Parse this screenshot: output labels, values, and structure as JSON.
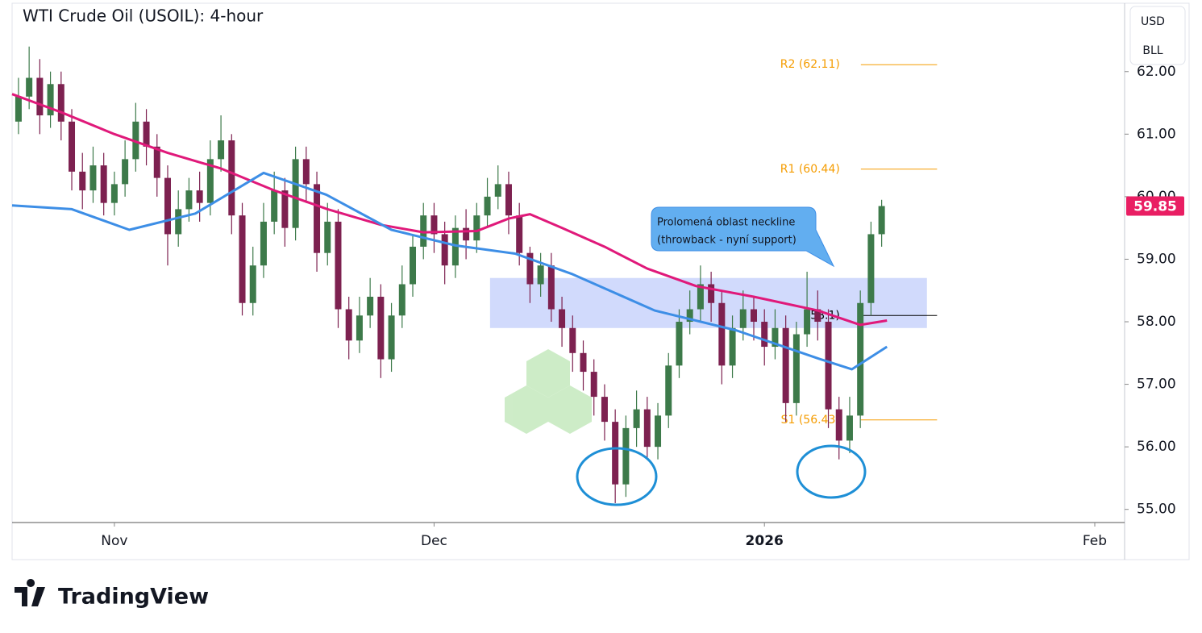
{
  "chart_data": {
    "type": "candlestick",
    "title": "WTI Crude Oil (USOIL): 4-hour",
    "currency": "USD",
    "unit": "BLL",
    "x": [
      -9,
      -8,
      -7,
      -6,
      -5,
      -4,
      -3,
      -2,
      -1,
      0,
      1,
      2,
      3,
      4,
      5,
      6,
      7,
      8,
      9,
      10,
      11,
      12,
      13,
      14,
      15,
      16,
      17,
      18,
      19,
      20,
      21,
      22,
      23,
      24,
      25,
      26,
      27,
      28,
      29,
      30,
      31,
      32,
      33,
      34,
      35,
      36,
      37,
      38,
      39,
      40,
      41,
      42,
      43,
      44,
      45,
      46,
      47,
      48,
      49,
      50,
      51,
      52,
      53,
      54,
      55,
      56,
      57,
      58,
      59,
      60,
      61,
      62,
      63,
      64,
      65,
      66,
      67,
      68,
      69,
      70,
      71,
      72
    ],
    "open": [
      61.2,
      61.6,
      61.9,
      61.3,
      61.8,
      61.2,
      60.4,
      60.1,
      60.5,
      59.9,
      60.2,
      60.6,
      61.2,
      60.8,
      60.3,
      59.4,
      59.8,
      60.1,
      59.9,
      60.6,
      60.9,
      59.7,
      58.3,
      58.9,
      59.6,
      60.1,
      59.5,
      60.6,
      60.2,
      59.1,
      59.6,
      58.2,
      57.7,
      58.1,
      58.4,
      57.4,
      58.1,
      58.6,
      59.2,
      59.7,
      59.4,
      58.9,
      59.5,
      59.3,
      59.7,
      60.0,
      60.2,
      59.7,
      59.1,
      58.6,
      58.9,
      58.2,
      57.9,
      57.5,
      57.2,
      56.8,
      56.4,
      55.4,
      56.3,
      56.6,
      56.0,
      56.5,
      57.3,
      58.0,
      58.2,
      58.6,
      58.3,
      57.3,
      57.9,
      58.2,
      58.0,
      57.6,
      57.9,
      56.7,
      57.8,
      58.2,
      58.0,
      56.6,
      56.1,
      56.5,
      58.3,
      59.4
    ],
    "high": [
      61.9,
      62.4,
      62.2,
      62.0,
      62.0,
      61.4,
      60.7,
      60.8,
      60.7,
      60.4,
      60.9,
      61.5,
      61.4,
      61.0,
      60.5,
      60.1,
      60.3,
      60.4,
      60.9,
      61.3,
      61.0,
      59.9,
      59.2,
      59.9,
      60.4,
      60.3,
      60.8,
      60.8,
      60.4,
      59.9,
      59.8,
      58.4,
      58.4,
      58.7,
      58.6,
      58.3,
      58.9,
      59.4,
      59.9,
      59.9,
      59.6,
      59.7,
      59.8,
      59.9,
      60.3,
      60.5,
      60.4,
      59.9,
      59.2,
      59.1,
      59.1,
      58.4,
      58.1,
      57.7,
      57.4,
      57.0,
      56.6,
      56.5,
      56.9,
      56.8,
      56.7,
      57.5,
      58.2,
      58.5,
      58.9,
      58.8,
      58.5,
      58.1,
      58.5,
      58.4,
      58.2,
      58.2,
      58.1,
      58.0,
      58.8,
      58.5,
      58.2,
      56.8,
      56.8,
      58.5,
      59.6,
      59.95
    ],
    "low": [
      61.0,
      61.4,
      61.0,
      61.1,
      60.9,
      60.1,
      59.8,
      59.9,
      59.7,
      59.7,
      60.0,
      60.4,
      60.5,
      60.0,
      58.9,
      59.2,
      59.6,
      59.6,
      59.7,
      60.4,
      59.4,
      58.1,
      58.1,
      58.7,
      59.4,
      59.2,
      59.3,
      59.9,
      58.8,
      58.9,
      57.9,
      57.4,
      57.5,
      57.9,
      57.1,
      57.2,
      57.9,
      58.4,
      59.0,
      59.1,
      58.6,
      58.7,
      59.0,
      59.1,
      59.5,
      59.8,
      59.4,
      58.9,
      58.3,
      58.4,
      58.0,
      57.6,
      57.2,
      56.9,
      56.5,
      56.1,
      55.1,
      55.2,
      56.0,
      55.8,
      55.8,
      56.3,
      57.1,
      57.8,
      58.0,
      58.0,
      57.0,
      57.1,
      57.7,
      57.7,
      57.3,
      57.4,
      56.4,
      56.5,
      57.6,
      57.7,
      56.3,
      55.8,
      55.9,
      56.3,
      58.1,
      59.2
    ],
    "close": [
      61.6,
      61.9,
      61.3,
      61.8,
      61.2,
      60.4,
      60.1,
      60.5,
      59.9,
      60.2,
      60.6,
      61.2,
      60.8,
      60.3,
      59.4,
      59.8,
      60.1,
      59.9,
      60.6,
      60.9,
      59.7,
      58.3,
      58.9,
      59.6,
      60.1,
      59.5,
      60.6,
      60.2,
      59.1,
      59.6,
      58.2,
      57.7,
      58.1,
      58.4,
      57.4,
      58.1,
      58.6,
      59.2,
      59.7,
      59.4,
      58.9,
      59.5,
      59.3,
      59.7,
      60.0,
      60.2,
      59.7,
      59.1,
      58.6,
      58.9,
      58.2,
      57.9,
      57.5,
      57.2,
      56.8,
      56.4,
      55.4,
      56.3,
      56.6,
      56.0,
      56.5,
      57.3,
      58.0,
      58.2,
      58.6,
      58.3,
      57.3,
      57.9,
      58.2,
      58.0,
      57.6,
      57.9,
      56.7,
      57.8,
      58.2,
      58.0,
      56.6,
      56.1,
      56.5,
      58.3,
      59.4,
      59.85
    ],
    "up_color": "#3d7a4a",
    "down_color": "#7d2150",
    "series": [
      {
        "color": "#e0197a",
        "x": [
          -9.6,
          -5,
          0,
          5,
          10,
          15,
          20,
          25,
          29,
          34,
          37,
          39,
          42,
          46,
          50,
          54.6,
          60,
          66,
          70,
          72.5
        ],
        "values": [
          61.64,
          61.35,
          61.0,
          60.7,
          60.45,
          60.1,
          59.8,
          59.55,
          59.43,
          59.45,
          59.65,
          59.72,
          59.5,
          59.2,
          58.85,
          58.57,
          58.4,
          58.18,
          57.95,
          58.02
        ]
      },
      {
        "color": "#3d8ee6",
        "x": [
          -9.6,
          -4,
          1.4,
          7.6,
          14,
          19.9,
          26,
          32,
          37.6,
          43,
          50.7,
          58.4,
          66.1,
          69.2,
          72.5
        ],
        "values": [
          59.86,
          59.8,
          59.47,
          59.73,
          60.38,
          60.03,
          59.47,
          59.22,
          59.09,
          58.76,
          58.18,
          57.86,
          57.41,
          57.24,
          57.6
        ]
      }
    ],
    "zone": {
      "low": 57.9,
      "high": 58.7,
      "x": [
        35.25,
        76.25
      ],
      "color": "#c9d3fb"
    },
    "levels": [
      {
        "label": "R2 (62.11)",
        "value": 62.11,
        "color": "#f59c00"
      },
      {
        "label": "R1 (60.44)",
        "value": 60.44,
        "color": "#f59c00"
      },
      {
        "label": "(58.1)",
        "value": 58.1,
        "color": "#000000"
      },
      {
        "label": "S1 (56.43)",
        "value": 56.43,
        "color": "#f59c00"
      }
    ],
    "levels_x": [
      70.05,
      77.2
    ],
    "callout": [
      "Prolomená oblast neckline",
      "(throwback - nyní support)"
    ],
    "watermark": "babypips",
    "xlim": [
      -9.6,
      94.8
    ],
    "ylim": [
      54.79,
      63.08
    ],
    "xticks": [
      {
        "value": 0,
        "label": "Nov"
      },
      {
        "value": 30,
        "label": "Dec"
      },
      {
        "value": 61,
        "label": "2026"
      },
      {
        "value": 92,
        "label": "Feb"
      }
    ],
    "yticks": [
      {
        "value": 55,
        "label": "55.00"
      },
      {
        "value": 56,
        "label": "56.00"
      },
      {
        "value": 57,
        "label": "57.00"
      },
      {
        "value": 58,
        "label": "58.00"
      },
      {
        "value": 59,
        "label": "59.00"
      },
      {
        "value": 60,
        "label": "60.00"
      },
      {
        "value": 61,
        "label": "61.00"
      },
      {
        "value": 62,
        "label": "62.00"
      }
    ],
    "last_color": "#e91e63"
  },
  "branding": "TradingView"
}
